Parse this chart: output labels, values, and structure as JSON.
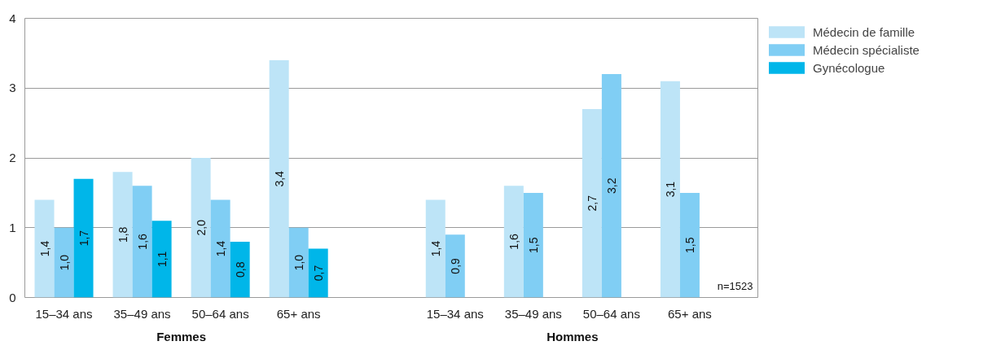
{
  "chart_data": {
    "type": "bar",
    "categories": [
      "15–34 ans",
      "35–49 ans",
      "50–64 ans",
      "65+ ans",
      null,
      "15–34 ans",
      "35–49 ans",
      "50–64 ans",
      "65+ ans"
    ],
    "series": [
      {
        "name": "Médecin de famille",
        "color": "#bde4f7",
        "values": [
          1.4,
          1.8,
          2.0,
          3.4,
          null,
          1.4,
          1.6,
          2.7,
          3.1
        ],
        "value_labels": [
          "1,4",
          "1,8",
          "2,0",
          "3,4",
          null,
          "1,4",
          "1,6",
          "2,7",
          "3,1"
        ]
      },
      {
        "name": "Médecin spécialiste",
        "color": "#80cef4",
        "values": [
          1.0,
          1.6,
          1.4,
          1.0,
          null,
          0.9,
          1.5,
          3.2,
          1.5
        ],
        "value_labels": [
          "1,0",
          "1,6",
          "1,4",
          "1,0",
          null,
          "0,9",
          "1,5",
          "3,2",
          "1,5"
        ]
      },
      {
        "name": "Gynécologue",
        "color": "#00b6e9",
        "values": [
          1.7,
          1.1,
          0.8,
          0.7,
          null,
          null,
          null,
          null,
          null
        ],
        "value_labels": [
          "1,7",
          "1,1",
          "0,8",
          "0,7",
          null,
          null,
          null,
          null,
          null
        ]
      }
    ],
    "ylim": [
      0,
      4
    ],
    "yticks": [
      0,
      1,
      2,
      3,
      4
    ],
    "grid": "y",
    "legend": "right",
    "annotations": [
      "Femmes",
      "Hommes",
      "n=1523"
    ]
  }
}
